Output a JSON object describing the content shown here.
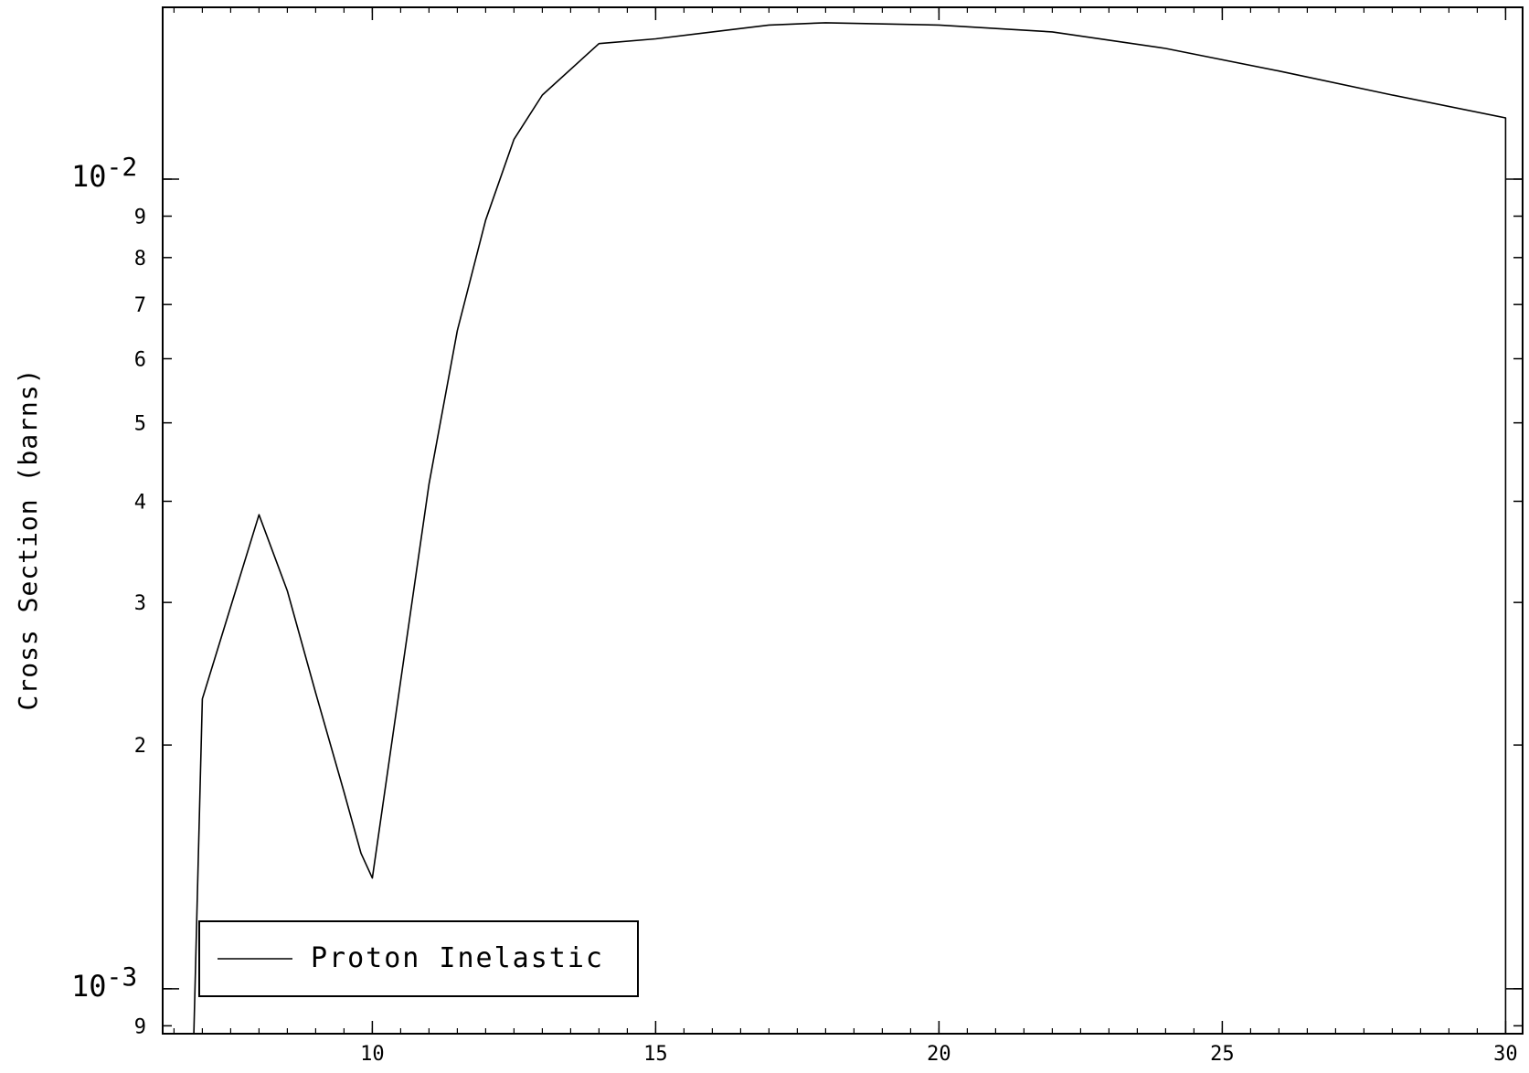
{
  "chart_data": {
    "type": "line",
    "title": "",
    "xlabel": "",
    "ylabel": "Cross Section (barns)",
    "xlim": [
      6.3,
      30.3
    ],
    "ylim": [
      0.00088,
      0.0163
    ],
    "yscale": "log",
    "grid": false,
    "legend_position": "bottom-left",
    "x_ticks": [
      10,
      15,
      20,
      25,
      30
    ],
    "x_tick_labels": [
      "10",
      "15",
      "20",
      "25",
      "30"
    ],
    "y_decade_labels": [
      {
        "value": 0.001,
        "base": "10",
        "exp": "-3"
      },
      {
        "value": 0.01,
        "base": "10",
        "exp": "-2"
      }
    ],
    "y_minor_labels": [
      {
        "value": 0.0009,
        "label": "9"
      },
      {
        "value": 0.002,
        "label": "2"
      },
      {
        "value": 0.003,
        "label": "3"
      },
      {
        "value": 0.004,
        "label": "4"
      },
      {
        "value": 0.005,
        "label": "5"
      },
      {
        "value": 0.006,
        "label": "6"
      },
      {
        "value": 0.007,
        "label": "7"
      },
      {
        "value": 0.008,
        "label": "8"
      },
      {
        "value": 0.009,
        "label": "9"
      }
    ],
    "series": [
      {
        "name": "Proton Inelastic",
        "color": "#000000",
        "x": [
          6.85,
          7.0,
          8.0,
          8.5,
          9.0,
          9.5,
          9.8,
          10.0,
          10.5,
          11.0,
          11.5,
          12.0,
          12.5,
          13.0,
          14.0,
          15.0,
          17.0,
          18.0,
          20.0,
          22.0,
          24.0,
          26.0,
          28.0,
          30.0,
          30.0
        ],
        "y": [
          0.00088,
          0.00228,
          0.00385,
          0.0031,
          0.00232,
          0.00175,
          0.00147,
          0.00137,
          0.0024,
          0.0042,
          0.0065,
          0.0089,
          0.0112,
          0.0127,
          0.0147,
          0.0149,
          0.0155,
          0.0156,
          0.0155,
          0.0152,
          0.0145,
          0.0136,
          0.0127,
          0.0119,
          0.00088
        ]
      }
    ]
  }
}
